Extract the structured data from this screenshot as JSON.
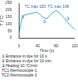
{
  "chart_data": {
    "type": "line",
    "x_label": "Time (s)",
    "y_label": "T (°C)",
    "x": [
      0,
      5,
      10,
      20,
      30,
      40,
      50,
      60,
      70,
      80,
      90,
      100,
      110,
      120
    ],
    "values": [
      25,
      120,
      160,
      172,
      178,
      183,
      150,
      140,
      175,
      196,
      170,
      130,
      90,
      60
    ],
    "color": "#1fa3d8",
    "xlim": [
      0,
      120
    ],
    "xticks": [
      0,
      40,
      80,
      120
    ],
    "ylim": [
      0,
      250
    ],
    "yticks": [
      0,
      50,
      100,
      150,
      200,
      250
    ],
    "grid": false,
    "annotations": [
      {
        "text": "TC max 183",
        "x": 35,
        "y": 225
      },
      {
        "text": "TC max 196",
        "x": 85,
        "y": 225
      },
      {
        "text": "①",
        "x": 8,
        "y": 150
      },
      {
        "text": "②",
        "x": 55,
        "y": 115
      },
      {
        "text": "③",
        "x": 105,
        "y": 140
      }
    ],
    "notes": [
      "① Entrance in dye for 10 s",
      "② Entrance in dye for 10 min",
      "③ Heating 10 °C/min",
      "TC1 thermocouple 1",
      "TC2 thermocouple 2"
    ]
  }
}
